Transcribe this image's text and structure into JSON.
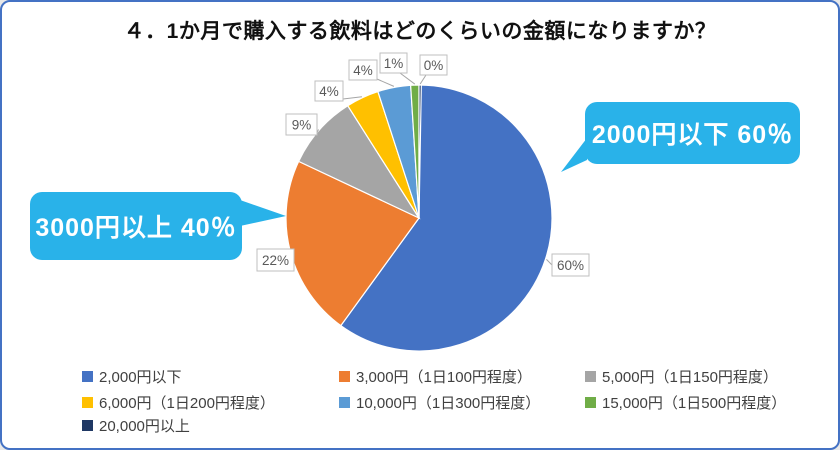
{
  "frame": {
    "border_color": "#4472C4",
    "background": "#FFFFFF"
  },
  "chart_data": {
    "type": "pie",
    "title": "４．1か月で購入する飲料はどのくらいの金額になりますか？",
    "categories": [
      "2,000円以下",
      "3,000円（1日100円程度）",
      "5,000円（1日150円程度）",
      "6,000円（1日200円程度）",
      "10,000円（1日300円程度）",
      "15,000円（1日500円程度）",
      "20,000円以上"
    ],
    "values": [
      60,
      22,
      9,
      4,
      4,
      1,
      0
    ],
    "data_labels": [
      "60%",
      "22%",
      "9%",
      "4%",
      "4%",
      "1%",
      "0%"
    ],
    "colors": [
      "#4472C4",
      "#ED7D31",
      "#A5A5A5",
      "#FFC000",
      "#5B9BD5",
      "#70AD47",
      "#1F3864"
    ],
    "slice_border_color": "#FFFFFF",
    "start_angle_deg": 0,
    "direction": "clockwise",
    "legend_position": "bottom",
    "label_box": {
      "fill": "#FFFFFF",
      "border": "#BFBFBF",
      "text_color": "#595959"
    },
    "annotations": [
      {
        "id": "right",
        "text": "2000円以下 60％",
        "bg": "#29B2E9",
        "text_color": "#FFFFFF"
      },
      {
        "id": "left",
        "text": "3000円以上 40％",
        "bg": "#29B2E9",
        "text_color": "#FFFFFF"
      }
    ]
  }
}
